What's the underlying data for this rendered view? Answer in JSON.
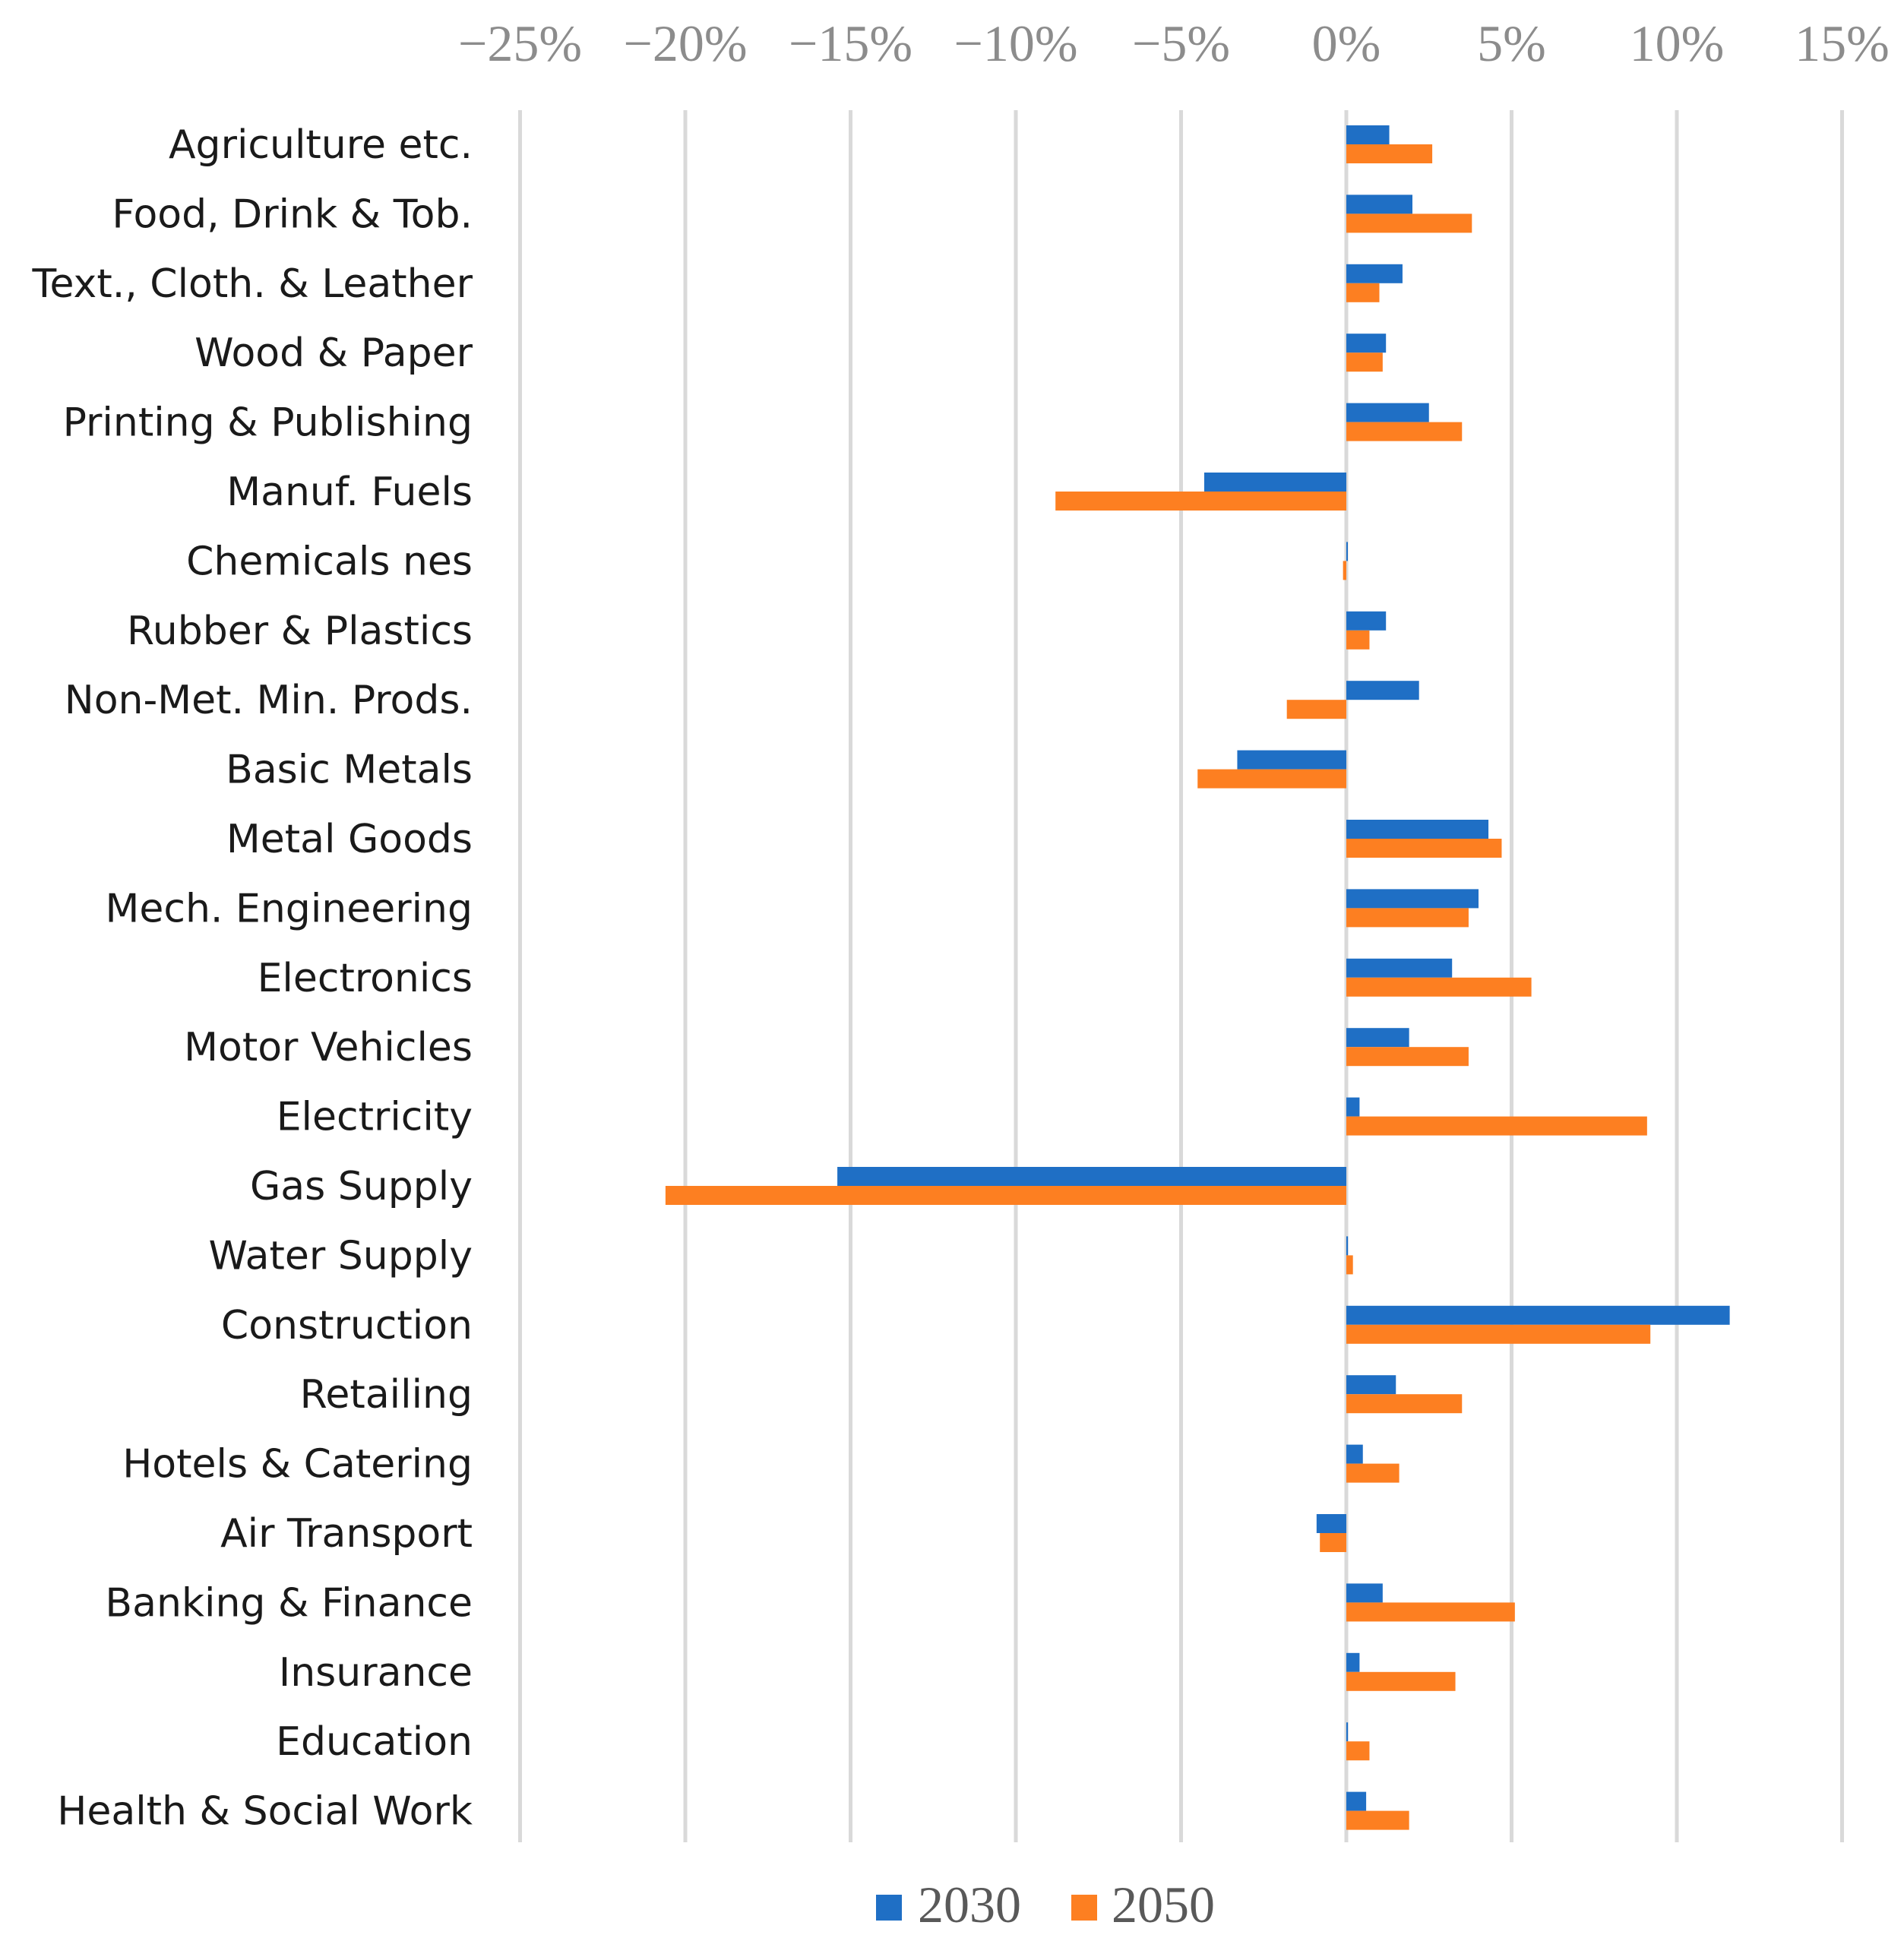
{
  "chart_data": {
    "type": "bar",
    "orientation": "horizontal",
    "title": "",
    "xlabel": "",
    "ylabel": "",
    "xlim": [
      -25,
      15
    ],
    "x_ticks": [
      -25,
      -20,
      -15,
      -10,
      -5,
      0,
      5,
      10,
      15
    ],
    "x_tick_labels": [
      "−25%",
      "−20%",
      "−15%",
      "−10%",
      "−5%",
      "0%",
      "5%",
      "10%",
      "15%"
    ],
    "x_axis_position": "top",
    "grid": true,
    "legend_position": "bottom",
    "categories": [
      "Agriculture etc.",
      "Food, Drink & Tob.",
      "Text., Cloth. & Leather",
      "Wood & Paper",
      "Printing & Publishing",
      "Manuf. Fuels",
      "Chemicals nes",
      "Rubber & Plastics",
      "Non-Met. Min. Prods.",
      "Basic Metals",
      "Metal Goods",
      "Mech. Engineering",
      "Electronics",
      "Motor Vehicles",
      "Electricity",
      "Gas Supply",
      "Water Supply",
      "Construction",
      "Retailing",
      "Hotels & Catering",
      "Air Transport",
      "Banking & Finance",
      "Insurance",
      "Education",
      "Health & Social Work"
    ],
    "series": [
      {
        "name": "2030",
        "color": "#1f6fc5",
        "values": [
          1.3,
          2.0,
          1.7,
          1.2,
          2.5,
          -4.3,
          0.0,
          1.2,
          2.2,
          -3.3,
          4.3,
          4.0,
          3.2,
          1.9,
          0.4,
          -15.4,
          0.05,
          11.6,
          1.5,
          0.5,
          -0.9,
          1.1,
          0.4,
          0.05,
          0.6
        ]
      },
      {
        "name": "2050",
        "color": "#fd7f21",
        "values": [
          2.6,
          3.8,
          1.0,
          1.1,
          3.5,
          -8.8,
          -0.1,
          0.7,
          -1.8,
          -4.5,
          4.7,
          3.7,
          5.6,
          3.7,
          9.1,
          -20.6,
          0.2,
          9.2,
          3.5,
          1.6,
          -0.8,
          5.1,
          3.3,
          0.7,
          1.9
        ]
      }
    ]
  }
}
